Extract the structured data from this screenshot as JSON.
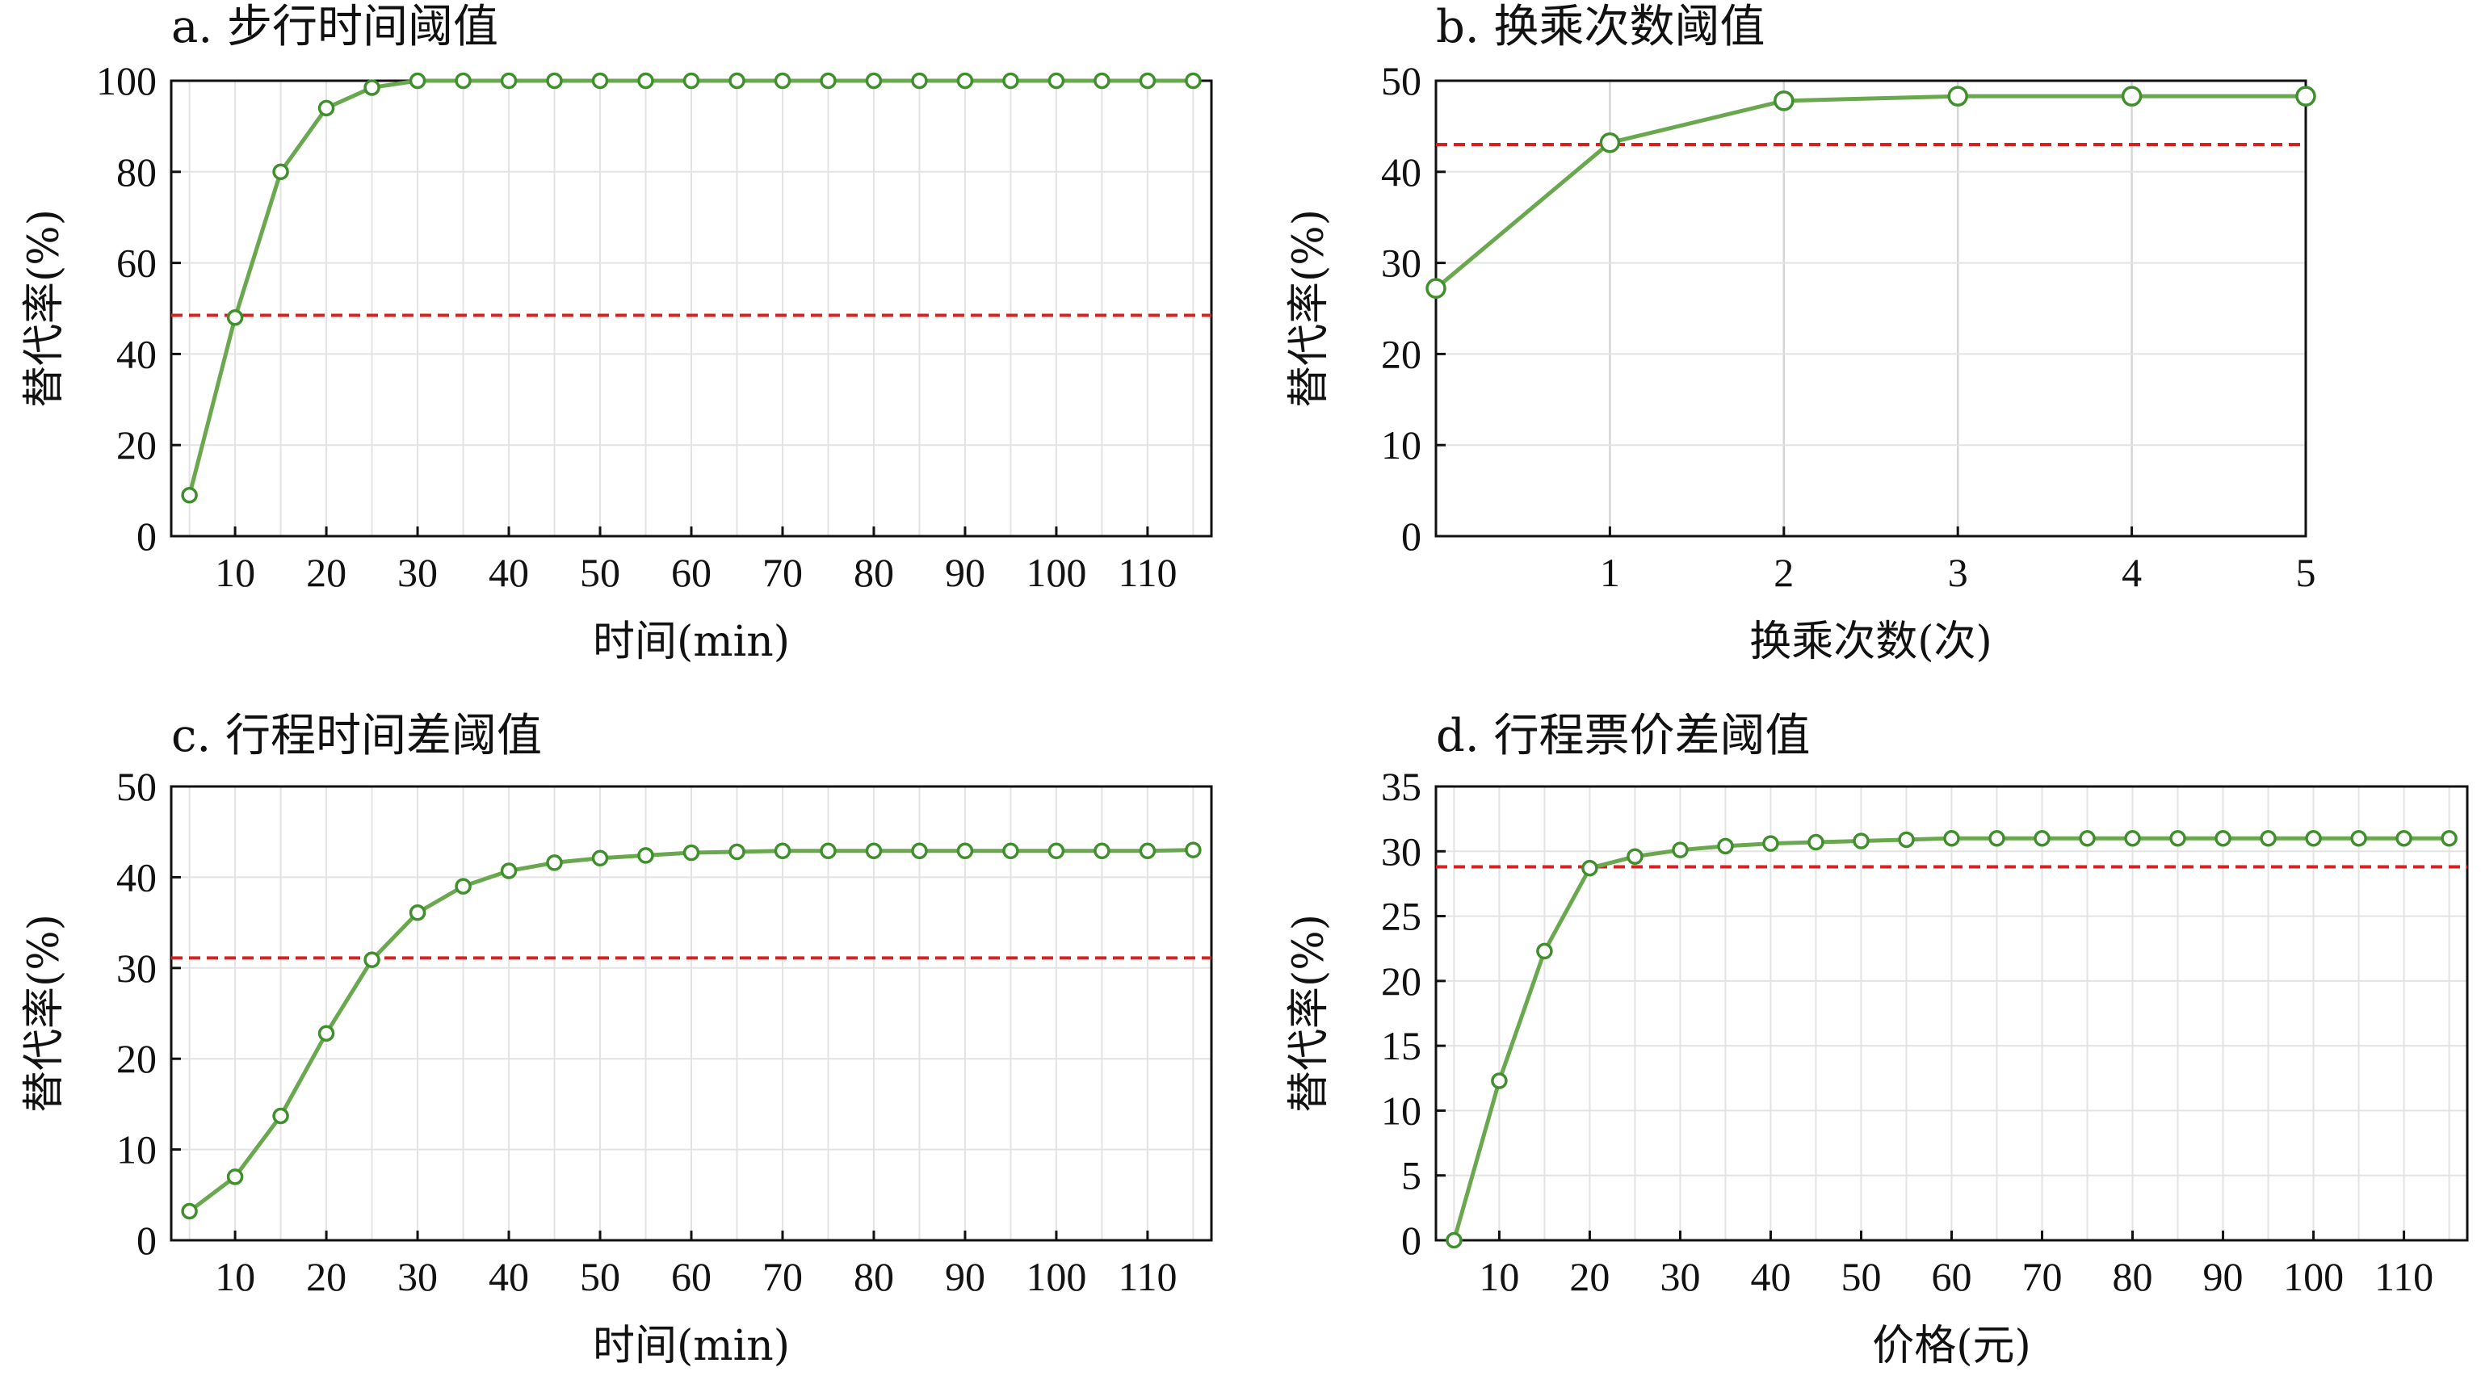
{
  "colors": {
    "series": "#6aa84f",
    "marker_edge": "#3f8f2c",
    "threshold": "#d92020",
    "grid": "#e3e3e3"
  },
  "chart_data": [
    {
      "id": "a",
      "type": "line",
      "title": "a. 步行时间阈值",
      "xlabel": "时间(min)",
      "ylabel": "替代率(%)",
      "xlim": [
        3,
        117
      ],
      "ylim": [
        0,
        100
      ],
      "xticks": [
        10,
        20,
        30,
        40,
        50,
        60,
        70,
        80,
        90,
        100,
        110
      ],
      "yticks": [
        0,
        20,
        40,
        60,
        80,
        100
      ],
      "grid": true,
      "x": [
        5,
        10,
        15,
        20,
        25,
        30,
        35,
        40,
        45,
        50,
        55,
        60,
        65,
        70,
        75,
        80,
        85,
        90,
        95,
        100,
        105,
        110,
        115
      ],
      "values": [
        9,
        48,
        80,
        94,
        98.5,
        100,
        100,
        100,
        100,
        100,
        100,
        100,
        100,
        100,
        100,
        100,
        100,
        100,
        100,
        100,
        100,
        100,
        100
      ],
      "threshold": 48.5
    },
    {
      "id": "b",
      "type": "line",
      "title": "b. 换乘次数阈值",
      "xlabel": "换乘次数(次)",
      "ylabel": "替代率(%)",
      "xlim": [
        0,
        5
      ],
      "ylim": [
        0,
        50
      ],
      "xticks": [
        1,
        2,
        3,
        4,
        5
      ],
      "yticks": [
        0,
        10,
        20,
        30,
        40,
        50
      ],
      "grid": true,
      "x": [
        0,
        1,
        2,
        3,
        4,
        5
      ],
      "values": [
        27.2,
        43.2,
        47.8,
        48.3,
        48.3,
        48.3
      ],
      "threshold": 43.0
    },
    {
      "id": "c",
      "type": "line",
      "title": "c. 行程时间差阈值",
      "xlabel": "时间(min)",
      "ylabel": "替代率(%)",
      "xlim": [
        3,
        117
      ],
      "ylim": [
        0,
        50
      ],
      "xticks": [
        10,
        20,
        30,
        40,
        50,
        60,
        70,
        80,
        90,
        100,
        110
      ],
      "yticks": [
        0,
        10,
        20,
        30,
        40,
        50
      ],
      "grid": true,
      "x": [
        5,
        10,
        15,
        20,
        25,
        30,
        35,
        40,
        45,
        50,
        55,
        60,
        65,
        70,
        75,
        80,
        85,
        90,
        95,
        100,
        105,
        110,
        115
      ],
      "values": [
        3.2,
        7,
        13.7,
        22.8,
        30.9,
        36.1,
        39,
        40.7,
        41.6,
        42.1,
        42.4,
        42.7,
        42.8,
        42.9,
        42.9,
        42.9,
        42.9,
        42.9,
        42.9,
        42.9,
        42.9,
        42.9,
        43
      ],
      "threshold": 31.1
    },
    {
      "id": "d",
      "type": "line",
      "title": "d. 行程票价差阈值",
      "xlabel": "价格(元)",
      "ylabel": "替代率(%)",
      "xlim": [
        3,
        117
      ],
      "ylim": [
        0,
        35
      ],
      "xticks": [
        10,
        20,
        30,
        40,
        50,
        60,
        70,
        80,
        90,
        100,
        110
      ],
      "yticks": [
        0,
        5,
        10,
        15,
        20,
        25,
        30,
        35
      ],
      "grid": true,
      "x": [
        5,
        10,
        15,
        20,
        25,
        30,
        35,
        40,
        45,
        50,
        55,
        60,
        65,
        70,
        75,
        80,
        85,
        90,
        95,
        100,
        105,
        110,
        115
      ],
      "values": [
        0,
        12.3,
        22.3,
        28.7,
        29.6,
        30.1,
        30.4,
        30.6,
        30.7,
        30.8,
        30.9,
        31,
        31,
        31,
        31,
        31,
        31,
        31,
        31,
        31,
        31,
        31,
        31
      ],
      "threshold": 28.8
    }
  ]
}
